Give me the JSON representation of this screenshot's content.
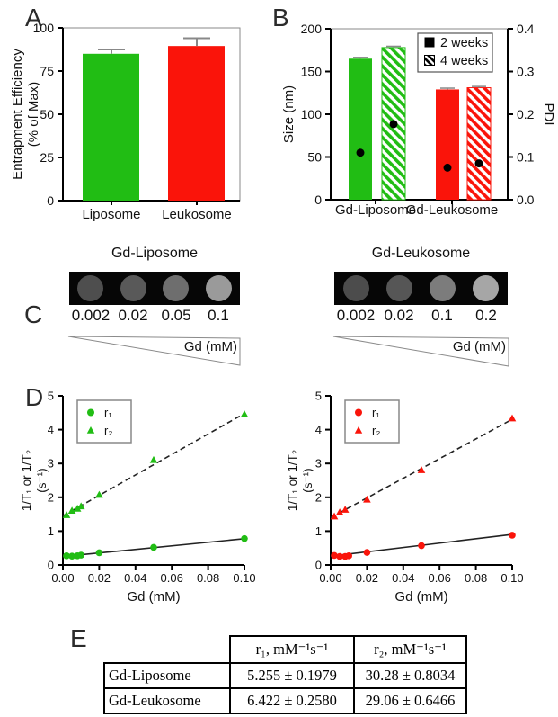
{
  "colors": {
    "green": "#21bd14",
    "red": "#fa140a",
    "black": "#000000",
    "error_bar": "#888888",
    "frame_gray": "#8a8a8a",
    "fit_line": "#222222"
  },
  "panel_a": {
    "label": "A"
  },
  "panel_b": {
    "label": "B"
  },
  "panel_c": {
    "label": "C",
    "groups": [
      {
        "title": "Gd-Liposome",
        "concentrations": [
          "0.002",
          "0.02",
          "0.05",
          "0.1"
        ],
        "circle_grays": [
          "#4e4e4e",
          "#595959",
          "#6e6e6e",
          "#9a9a9a"
        ],
        "wedge_label": "Gd (mM)"
      },
      {
        "title": "Gd-Leukosome",
        "concentrations": [
          "0.002",
          "0.02",
          "0.1",
          "0.2"
        ],
        "circle_grays": [
          "#4c4c4c",
          "#565656",
          "#7c7c7c",
          "#a6a6a6"
        ],
        "wedge_label": "Gd (mM)"
      }
    ]
  },
  "panel_d": {
    "label": "D"
  },
  "panel_e": {
    "label": "E",
    "table": {
      "col_headers": [
        "r₁, mM⁻¹s⁻¹",
        "r₂, mM⁻¹s⁻¹"
      ],
      "rows": [
        {
          "label": "Gd-Liposome",
          "r1": "5.255 ± 0.1979",
          "r2": "30.28 ± 0.8034"
        },
        {
          "label": "Gd-Leukosome",
          "r1": "6.422 ± 0.2580",
          "r2": "29.06 ± 0.6466"
        }
      ]
    }
  },
  "chart_data": [
    {
      "id": "panel-a",
      "type": "bar",
      "categories": [
        "Liposome",
        "Leukosome"
      ],
      "values": [
        85,
        89.5
      ],
      "errors": [
        2.5,
        4.5
      ],
      "bar_color_keys": [
        "green",
        "red"
      ],
      "ylabel": [
        "Entrapment Efficiency",
        "(% of Max)"
      ],
      "yticks": [
        0,
        25,
        50,
        75,
        100
      ],
      "ylim": [
        0,
        100
      ]
    },
    {
      "id": "panel-b",
      "type": "bar-dual-axis",
      "categories": [
        "Gd-Liposome",
        "Gd-Leukosome"
      ],
      "category_color_keys": [
        "green",
        "red"
      ],
      "legend": [
        {
          "label": "2 weeks",
          "style": "solid"
        },
        {
          "label": "4 weeks",
          "style": "hatched"
        }
      ],
      "size_axis": {
        "ylabel": "Size (nm)",
        "yticks": [
          0,
          50,
          100,
          150,
          200
        ],
        "ylim": [
          0,
          200
        ]
      },
      "pdi_axis": {
        "ylabel": "PDI",
        "ytick_labels": [
          "0.0",
          "0.1",
          "0.2",
          "0.3",
          "0.4"
        ],
        "ylim": [
          0,
          0.4
        ]
      },
      "size_series": {
        "2 weeks": [
          165,
          129
        ],
        "4 weeks": [
          178,
          131
        ]
      },
      "size_errors": {
        "2 weeks": [
          1.5,
          1.5
        ],
        "4 weeks": [
          1.5,
          1.5
        ]
      },
      "pdi_series": {
        "2 weeks": [
          0.11,
          0.075
        ],
        "4 weeks": [
          0.177,
          0.085
        ]
      }
    },
    {
      "id": "panel-d-left",
      "type": "scatter",
      "color_key": "green",
      "xlabel": "Gd (mM)",
      "ylabel": [
        "1/T₁ or 1/T₂",
        "(s⁻¹)"
      ],
      "xlim": [
        0,
        0.1
      ],
      "ylim": [
        0,
        5
      ],
      "xtick_labels": [
        "0.00",
        "0.02",
        "0.04",
        "0.06",
        "0.08",
        "0.10"
      ],
      "yticks": [
        0,
        1,
        2,
        3,
        4,
        5
      ],
      "series": [
        {
          "name": "r₁",
          "marker": "circle",
          "line": "solid",
          "fit_intercept": 0.25,
          "fit_slope": 5.255,
          "points": [
            [
              0.002,
              0.27
            ],
            [
              0.005,
              0.26
            ],
            [
              0.008,
              0.27
            ],
            [
              0.01,
              0.29
            ],
            [
              0.02,
              0.36
            ],
            [
              0.05,
              0.52
            ],
            [
              0.1,
              0.78
            ]
          ]
        },
        {
          "name": "r₂",
          "marker": "triangle",
          "line": "dashed",
          "fit_intercept": 1.45,
          "fit_slope": 30.28,
          "points": [
            [
              0.002,
              1.47
            ],
            [
              0.005,
              1.6
            ],
            [
              0.008,
              1.66
            ],
            [
              0.01,
              1.73
            ],
            [
              0.02,
              2.07
            ],
            [
              0.05,
              3.1
            ],
            [
              0.1,
              4.45
            ]
          ]
        }
      ]
    },
    {
      "id": "panel-d-right",
      "type": "scatter",
      "color_key": "red",
      "xlabel": "Gd (mM)",
      "ylabel": [
        "1/T₁ or 1/T₂",
        "(s⁻¹)"
      ],
      "xlim": [
        0,
        0.1
      ],
      "ylim": [
        0,
        5
      ],
      "xtick_labels": [
        "0.00",
        "0.02",
        "0.04",
        "0.06",
        "0.08",
        "0.10"
      ],
      "yticks": [
        0,
        1,
        2,
        3,
        4,
        5
      ],
      "series": [
        {
          "name": "r₁",
          "marker": "circle",
          "line": "solid",
          "fit_intercept": 0.26,
          "fit_slope": 6.422,
          "points": [
            [
              0.002,
              0.28
            ],
            [
              0.005,
              0.25
            ],
            [
              0.008,
              0.25
            ],
            [
              0.01,
              0.27
            ],
            [
              0.02,
              0.37
            ],
            [
              0.05,
              0.57
            ],
            [
              0.1,
              0.88
            ]
          ]
        },
        {
          "name": "r₂",
          "marker": "triangle",
          "line": "dashed",
          "fit_intercept": 1.4,
          "fit_slope": 29.06,
          "points": [
            [
              0.002,
              1.43
            ],
            [
              0.005,
              1.55
            ],
            [
              0.008,
              1.63
            ],
            [
              0.02,
              1.93
            ],
            [
              0.05,
              2.8
            ],
            [
              0.1,
              4.33
            ]
          ]
        }
      ]
    }
  ]
}
